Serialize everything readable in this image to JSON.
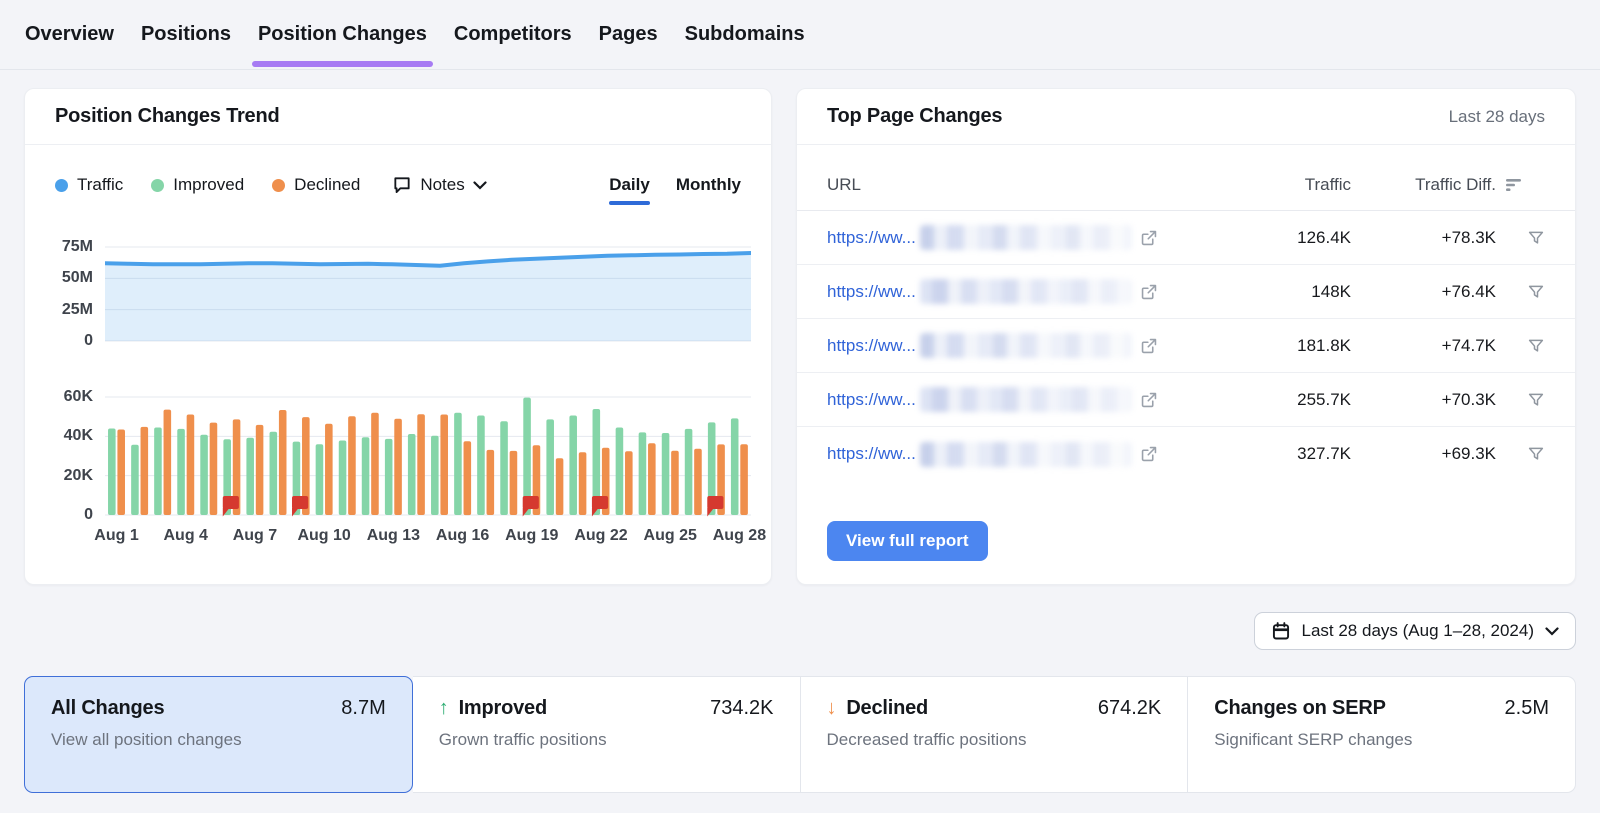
{
  "nav": {
    "tabs": [
      {
        "label": "Overview",
        "active": false
      },
      {
        "label": "Positions",
        "active": false
      },
      {
        "label": "Position Changes",
        "active": true
      },
      {
        "label": "Competitors",
        "active": false
      },
      {
        "label": "Pages",
        "active": false
      },
      {
        "label": "Subdomains",
        "active": false
      }
    ]
  },
  "trend_card": {
    "title": "Position Changes Trend",
    "legend": [
      {
        "label": "Traffic",
        "color": "#4aa0ea"
      },
      {
        "label": "Improved",
        "color": "#85d5a8"
      },
      {
        "label": "Declined",
        "color": "#ef8f4c"
      }
    ],
    "notes_label": "Notes",
    "granularity": [
      {
        "label": "Daily",
        "active": true
      },
      {
        "label": "Monthly",
        "active": false
      }
    ]
  },
  "chart_data": [
    {
      "type": "area",
      "name": "Traffic",
      "unit": "M",
      "ylim": [
        0,
        75
      ],
      "yticks": [
        {
          "label": "75M",
          "value": 75
        },
        {
          "label": "50M",
          "value": 50
        },
        {
          "label": "25M",
          "value": 25
        },
        {
          "label": "0",
          "value": 0
        }
      ],
      "x_tick_labels": [
        "Aug 1",
        "Aug 4",
        "Aug 7",
        "Aug 10",
        "Aug 13",
        "Aug 16",
        "Aug 19",
        "Aug 22",
        "Aug 25",
        "Aug 28"
      ],
      "categories": [
        "Aug 1",
        "Aug 2",
        "Aug 3",
        "Aug 4",
        "Aug 5",
        "Aug 6",
        "Aug 7",
        "Aug 8",
        "Aug 9",
        "Aug 10",
        "Aug 11",
        "Aug 12",
        "Aug 13",
        "Aug 14",
        "Aug 15",
        "Aug 16",
        "Aug 17",
        "Aug 18",
        "Aug 19",
        "Aug 20",
        "Aug 21",
        "Aug 22",
        "Aug 23",
        "Aug 24",
        "Aug 25",
        "Aug 26",
        "Aug 27",
        "Aug 28"
      ],
      "values": [
        62,
        61.6,
        61.2,
        61.2,
        61.2,
        61.6,
        62,
        62,
        61.6,
        61.2,
        61.4,
        61.6,
        61.2,
        60.6,
        60,
        62,
        63.5,
        64.8,
        65.6,
        66.5,
        67.2,
        68,
        68.4,
        68.8,
        69,
        69.4,
        69.6,
        70.2
      ],
      "grid": true
    },
    {
      "type": "bar",
      "unit": "K",
      "ylim": [
        0,
        60
      ],
      "yticks": [
        {
          "label": "60K",
          "value": 60
        },
        {
          "label": "40K",
          "value": 40
        },
        {
          "label": "20K",
          "value": 20
        },
        {
          "label": "0",
          "value": 0
        }
      ],
      "x_tick_labels": [
        "Aug 1",
        "Aug 4",
        "Aug 7",
        "Aug 10",
        "Aug 13",
        "Aug 16",
        "Aug 19",
        "Aug 22",
        "Aug 25",
        "Aug 28"
      ],
      "categories": [
        "Aug 1",
        "Aug 2",
        "Aug 3",
        "Aug 4",
        "Aug 5",
        "Aug 6",
        "Aug 7",
        "Aug 8",
        "Aug 9",
        "Aug 10",
        "Aug 11",
        "Aug 12",
        "Aug 13",
        "Aug 14",
        "Aug 15",
        "Aug 16",
        "Aug 17",
        "Aug 18",
        "Aug 19",
        "Aug 20",
        "Aug 21",
        "Aug 22",
        "Aug 23",
        "Aug 24",
        "Aug 25",
        "Aug 26",
        "Aug 27",
        "Aug 28"
      ],
      "series": [
        {
          "name": "Improved",
          "values": [
            44,
            35.7,
            44.5,
            43.8,
            40.8,
            38.5,
            39.3,
            42.3,
            37.3,
            36,
            37.9,
            39.5,
            38.7,
            41.2,
            40.3,
            52,
            50.6,
            47.7,
            59.7,
            48.6,
            50.6,
            53.9,
            44.5,
            42,
            41.7,
            43.8,
            47.1,
            49.1
          ]
        },
        {
          "name": "Declined",
          "values": [
            43.5,
            44.8,
            53.6,
            51.1,
            47,
            48.6,
            45.8,
            53.4,
            49.8,
            46.4,
            50.2,
            52,
            48.9,
            51.2,
            51.1,
            37.5,
            33.1,
            32.6,
            35.5,
            28.9,
            31.9,
            34.2,
            32.4,
            36.5,
            32.7,
            33.7,
            35.9,
            36
          ]
        }
      ],
      "note_flag_days": [
        6,
        9,
        19,
        22,
        27
      ],
      "grid": true
    }
  ],
  "top_pages_card": {
    "title": "Top Page Changes",
    "period": "Last 28 days",
    "columns": {
      "url": "URL",
      "traffic": "Traffic",
      "diff": "Traffic Diff."
    },
    "rows": [
      {
        "url": "https://ww...",
        "traffic": "126.4K",
        "diff": "+78.3K"
      },
      {
        "url": "https://ww...",
        "traffic": "148K",
        "diff": "+76.4K"
      },
      {
        "url": "https://ww...",
        "traffic": "181.8K",
        "diff": "+74.7K"
      },
      {
        "url": "https://ww...",
        "traffic": "255.7K",
        "diff": "+70.3K"
      },
      {
        "url": "https://ww...",
        "traffic": "327.7K",
        "diff": "+69.3K"
      }
    ],
    "button": "View full report"
  },
  "date_filter": {
    "label": "Last 28 days (Aug 1–28, 2024)"
  },
  "summary_cards": [
    {
      "label": "All Changes",
      "value": "8.7M",
      "description": "View all position changes",
      "selected": true,
      "arrow": null
    },
    {
      "label": "Improved",
      "value": "734.2K",
      "description": "Grown traffic positions",
      "selected": false,
      "arrow": "up"
    },
    {
      "label": "Declined",
      "value": "674.2K",
      "description": "Decreased traffic positions",
      "selected": false,
      "arrow": "down"
    },
    {
      "label": "Changes on SERP",
      "value": "2.5M",
      "description": "Significant SERP changes",
      "selected": false,
      "arrow": null
    }
  ],
  "icons": {
    "notes": "speech-bubble-icon",
    "chevron": "chevron-down-icon",
    "sort": "sort-descending-icon",
    "row_filter": "funnel-icon",
    "external": "external-link-icon",
    "calendar": "calendar-icon",
    "note_marker": "red-flag-note-marker"
  },
  "colors": {
    "traffic_line": "#4aa0ea",
    "traffic_fill": "rgba(77,160,234,0.18)",
    "improved_bar": "#85d5a8",
    "declined_bar": "#ef8f4c",
    "note_flag": "#d5392f",
    "active_tab_underline": "#a77bf3",
    "toggle_underline": "#2e6bd8",
    "link": "#3063d8",
    "button": "#4c86f0",
    "selected_card_bg": "#dce8fb",
    "selected_card_border": "#3f6fd8",
    "up_arrow": "#2fae74",
    "down_arrow": "#ef8f4c",
    "grid": "#e4e8ef"
  }
}
